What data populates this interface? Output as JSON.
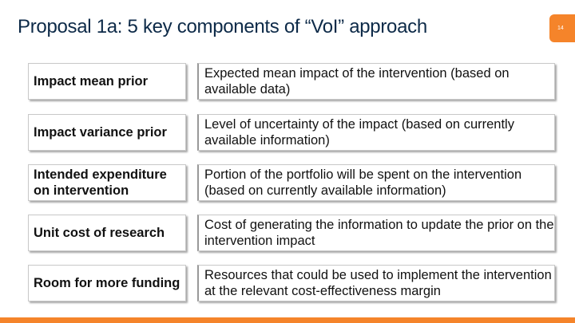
{
  "slide": {
    "title": "Proposal 1a: 5 key components of “VoI” approach",
    "page_number": "14",
    "accent_color": "#f5842a",
    "title_color": "#0d2a48"
  },
  "components": [
    {
      "label": "Impact mean prior",
      "description": "Expected mean impact of the intervention (based on available data)"
    },
    {
      "label": "Impact variance prior",
      "description": "Level of uncertainty of the impact (based on currently available information)"
    },
    {
      "label": "Intended expenditure on intervention",
      "description": "Portion of the portfolio will be spent on the intervention (based on currently available information)"
    },
    {
      "label": "Unit cost of research",
      "description": "Cost of generating the information to update the prior on the intervention impact"
    },
    {
      "label": "Room for more funding",
      "description": "Resources that could be used to implement the intervention at the relevant cost-effectiveness margin"
    }
  ]
}
